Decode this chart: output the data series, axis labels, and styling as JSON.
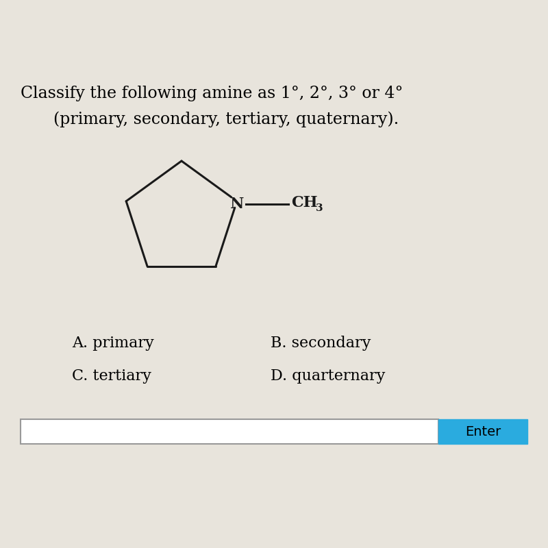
{
  "title_line1": "Classify the following amine as 1°, 2°, 3° or 4°",
  "title_line2": "(primary, secondary, tertiary, quaternary).",
  "option_A": "A. primary",
  "option_B": "B. secondary",
  "option_C": "C. tertiary",
  "option_D": "D. quarternary",
  "enter_label": "Enter",
  "bg_color": "#e8e4dc",
  "text_color": "#000000",
  "enter_btn_color": "#2aabdf",
  "enter_btn_text_color": "#000000",
  "input_box_color": "#ffffff",
  "molecule_color": "#1a1a1a",
  "title_fontsize": 17,
  "options_fontsize": 16,
  "enter_fontsize": 14,
  "molecule_lw": 2.2
}
